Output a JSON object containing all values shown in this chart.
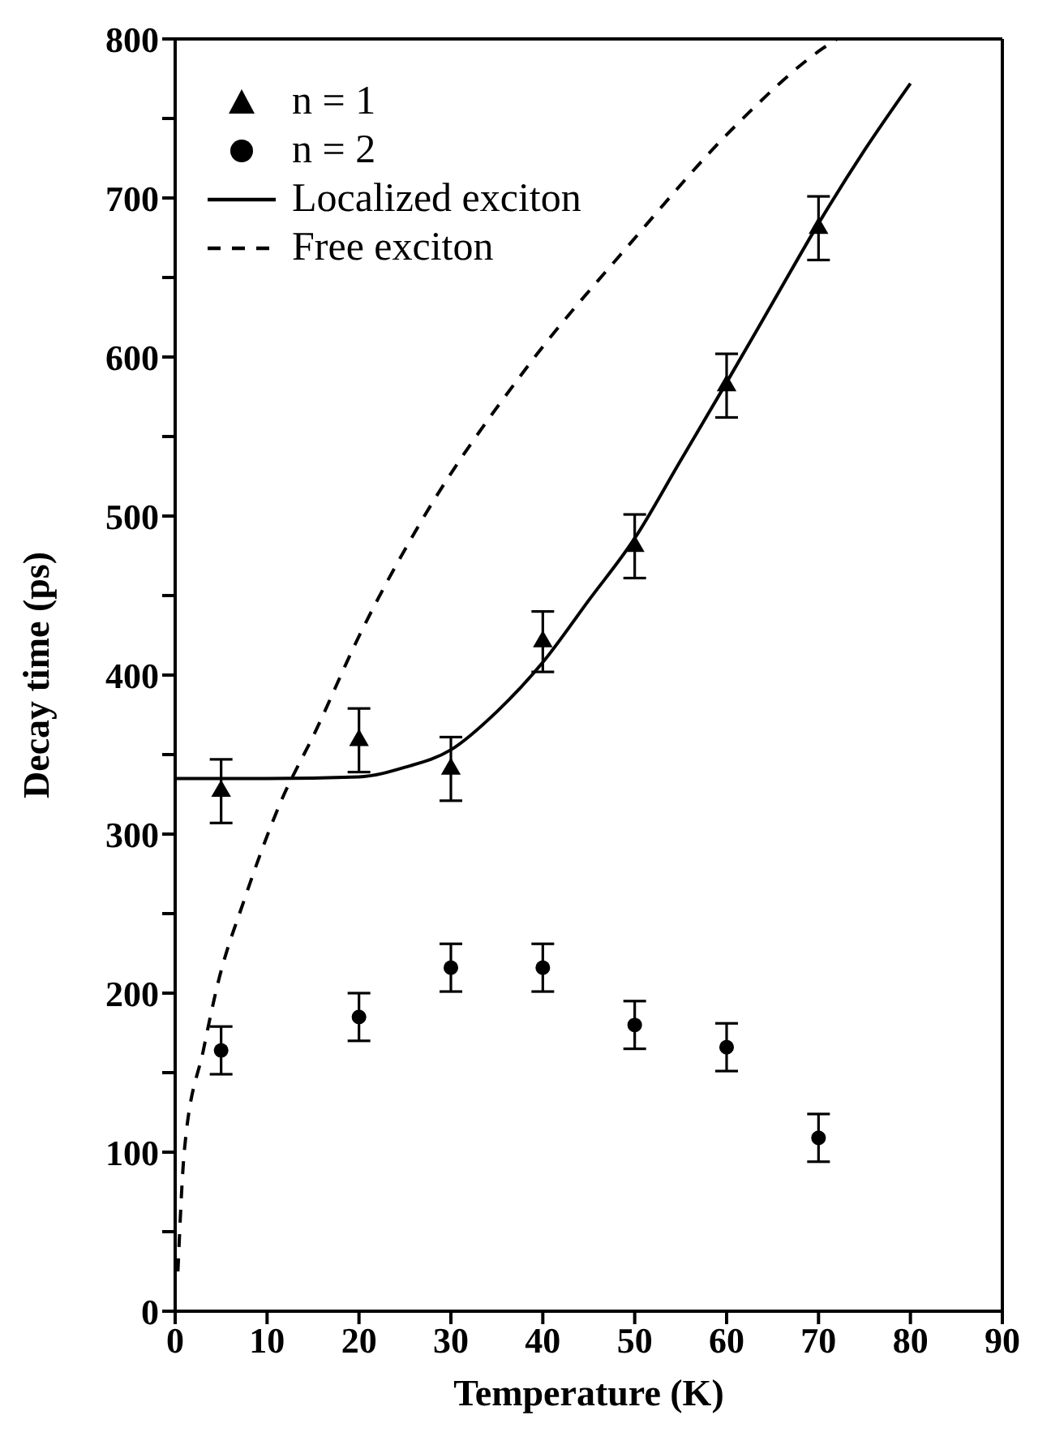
{
  "chart_data": {
    "type": "scatter",
    "xlabel": "Temperature (K)",
    "ylabel": "Decay time (ps)",
    "x": [
      5,
      20,
      30,
      40,
      50,
      60,
      70
    ],
    "xlim": [
      0,
      90
    ],
    "xticks": [
      0,
      10,
      20,
      30,
      40,
      50,
      60,
      70,
      80,
      90
    ],
    "ylim": [
      0,
      800
    ],
    "yticks": [
      0,
      {
        "value": 50,
        "label": null
      },
      100,
      {
        "value": 150,
        "label": null
      },
      200,
      {
        "value": 250,
        "label": null
      },
      300,
      {
        "value": 350,
        "label": null
      },
      400,
      {
        "value": 450,
        "label": null
      },
      500,
      {
        "value": 550,
        "label": null
      },
      600,
      {
        "value": 650,
        "label": null
      },
      700,
      {
        "value": 750,
        "label": null
      },
      800
    ],
    "legend": "top left",
    "series": [
      {
        "name": "n = 1",
        "marker": "triangle",
        "color": "#000000",
        "values": [
          327,
          359,
          341,
          421,
          481,
          582,
          681
        ],
        "errors": [
          20,
          20,
          20,
          19,
          20,
          20,
          20
        ]
      },
      {
        "name": "n = 2",
        "marker": "circle",
        "color": "#000000",
        "values": [
          164,
          185,
          216,
          216,
          180,
          166,
          109
        ],
        "errors": [
          15,
          15,
          15,
          15,
          15,
          15,
          15
        ]
      },
      {
        "name": "Localized exciton",
        "type": "line",
        "line_style": "solid",
        "marker": "none",
        "color": "#000000",
        "x": [
          0,
          10,
          20,
          25,
          30,
          35,
          40,
          45,
          50,
          55,
          60,
          65,
          70,
          75,
          80
        ],
        "values": [
          335,
          335,
          336,
          342,
          353,
          377,
          408,
          447,
          486,
          535,
          584,
          634,
          684,
          730,
          772
        ]
      },
      {
        "name": "Free exciton",
        "type": "line",
        "line_style": "dashed",
        "marker": "none",
        "color": "#000000",
        "x": [
          0.3,
          1,
          3.1,
          4.6,
          7.6,
          11.4,
          15.3,
          19.8,
          26.6,
          38.2,
          49.3,
          60.9,
          70.2,
          72
        ],
        "values": [
          25,
          101,
          165,
          205,
          260,
          319,
          365,
          422,
          495,
          593,
          670,
          745,
          793,
          800
        ]
      }
    ]
  }
}
